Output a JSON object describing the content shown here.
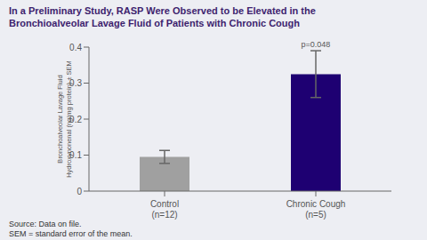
{
  "chart_data": {
    "type": "bar",
    "title": "In a Preliminary Study, RASP Were Observed to be Elevated in the\nBronchioalveolar Lavage Fluid of Patients with Chronic Cough",
    "y_label": "Bronchoalveolar Lavage Fluid\nHydroxynonenal (ng/mg protein) ± SEM",
    "categories": [
      "Control\n(n=12)",
      "Chronic Cough\n(n=5)"
    ],
    "values": [
      0.095,
      0.325
    ],
    "errors": [
      0.018,
      0.065
    ],
    "colors": [
      "#a0a0a0",
      "#1e0072"
    ],
    "ylim": [
      0,
      0.4
    ],
    "yticks": [
      0,
      0.1,
      0.2,
      0.3,
      0.4
    ],
    "grid": false,
    "annotations": [
      "p=0.048"
    ],
    "footnotes": [
      "Source: Data on file.",
      "SEM = standard error of the mean."
    ]
  }
}
